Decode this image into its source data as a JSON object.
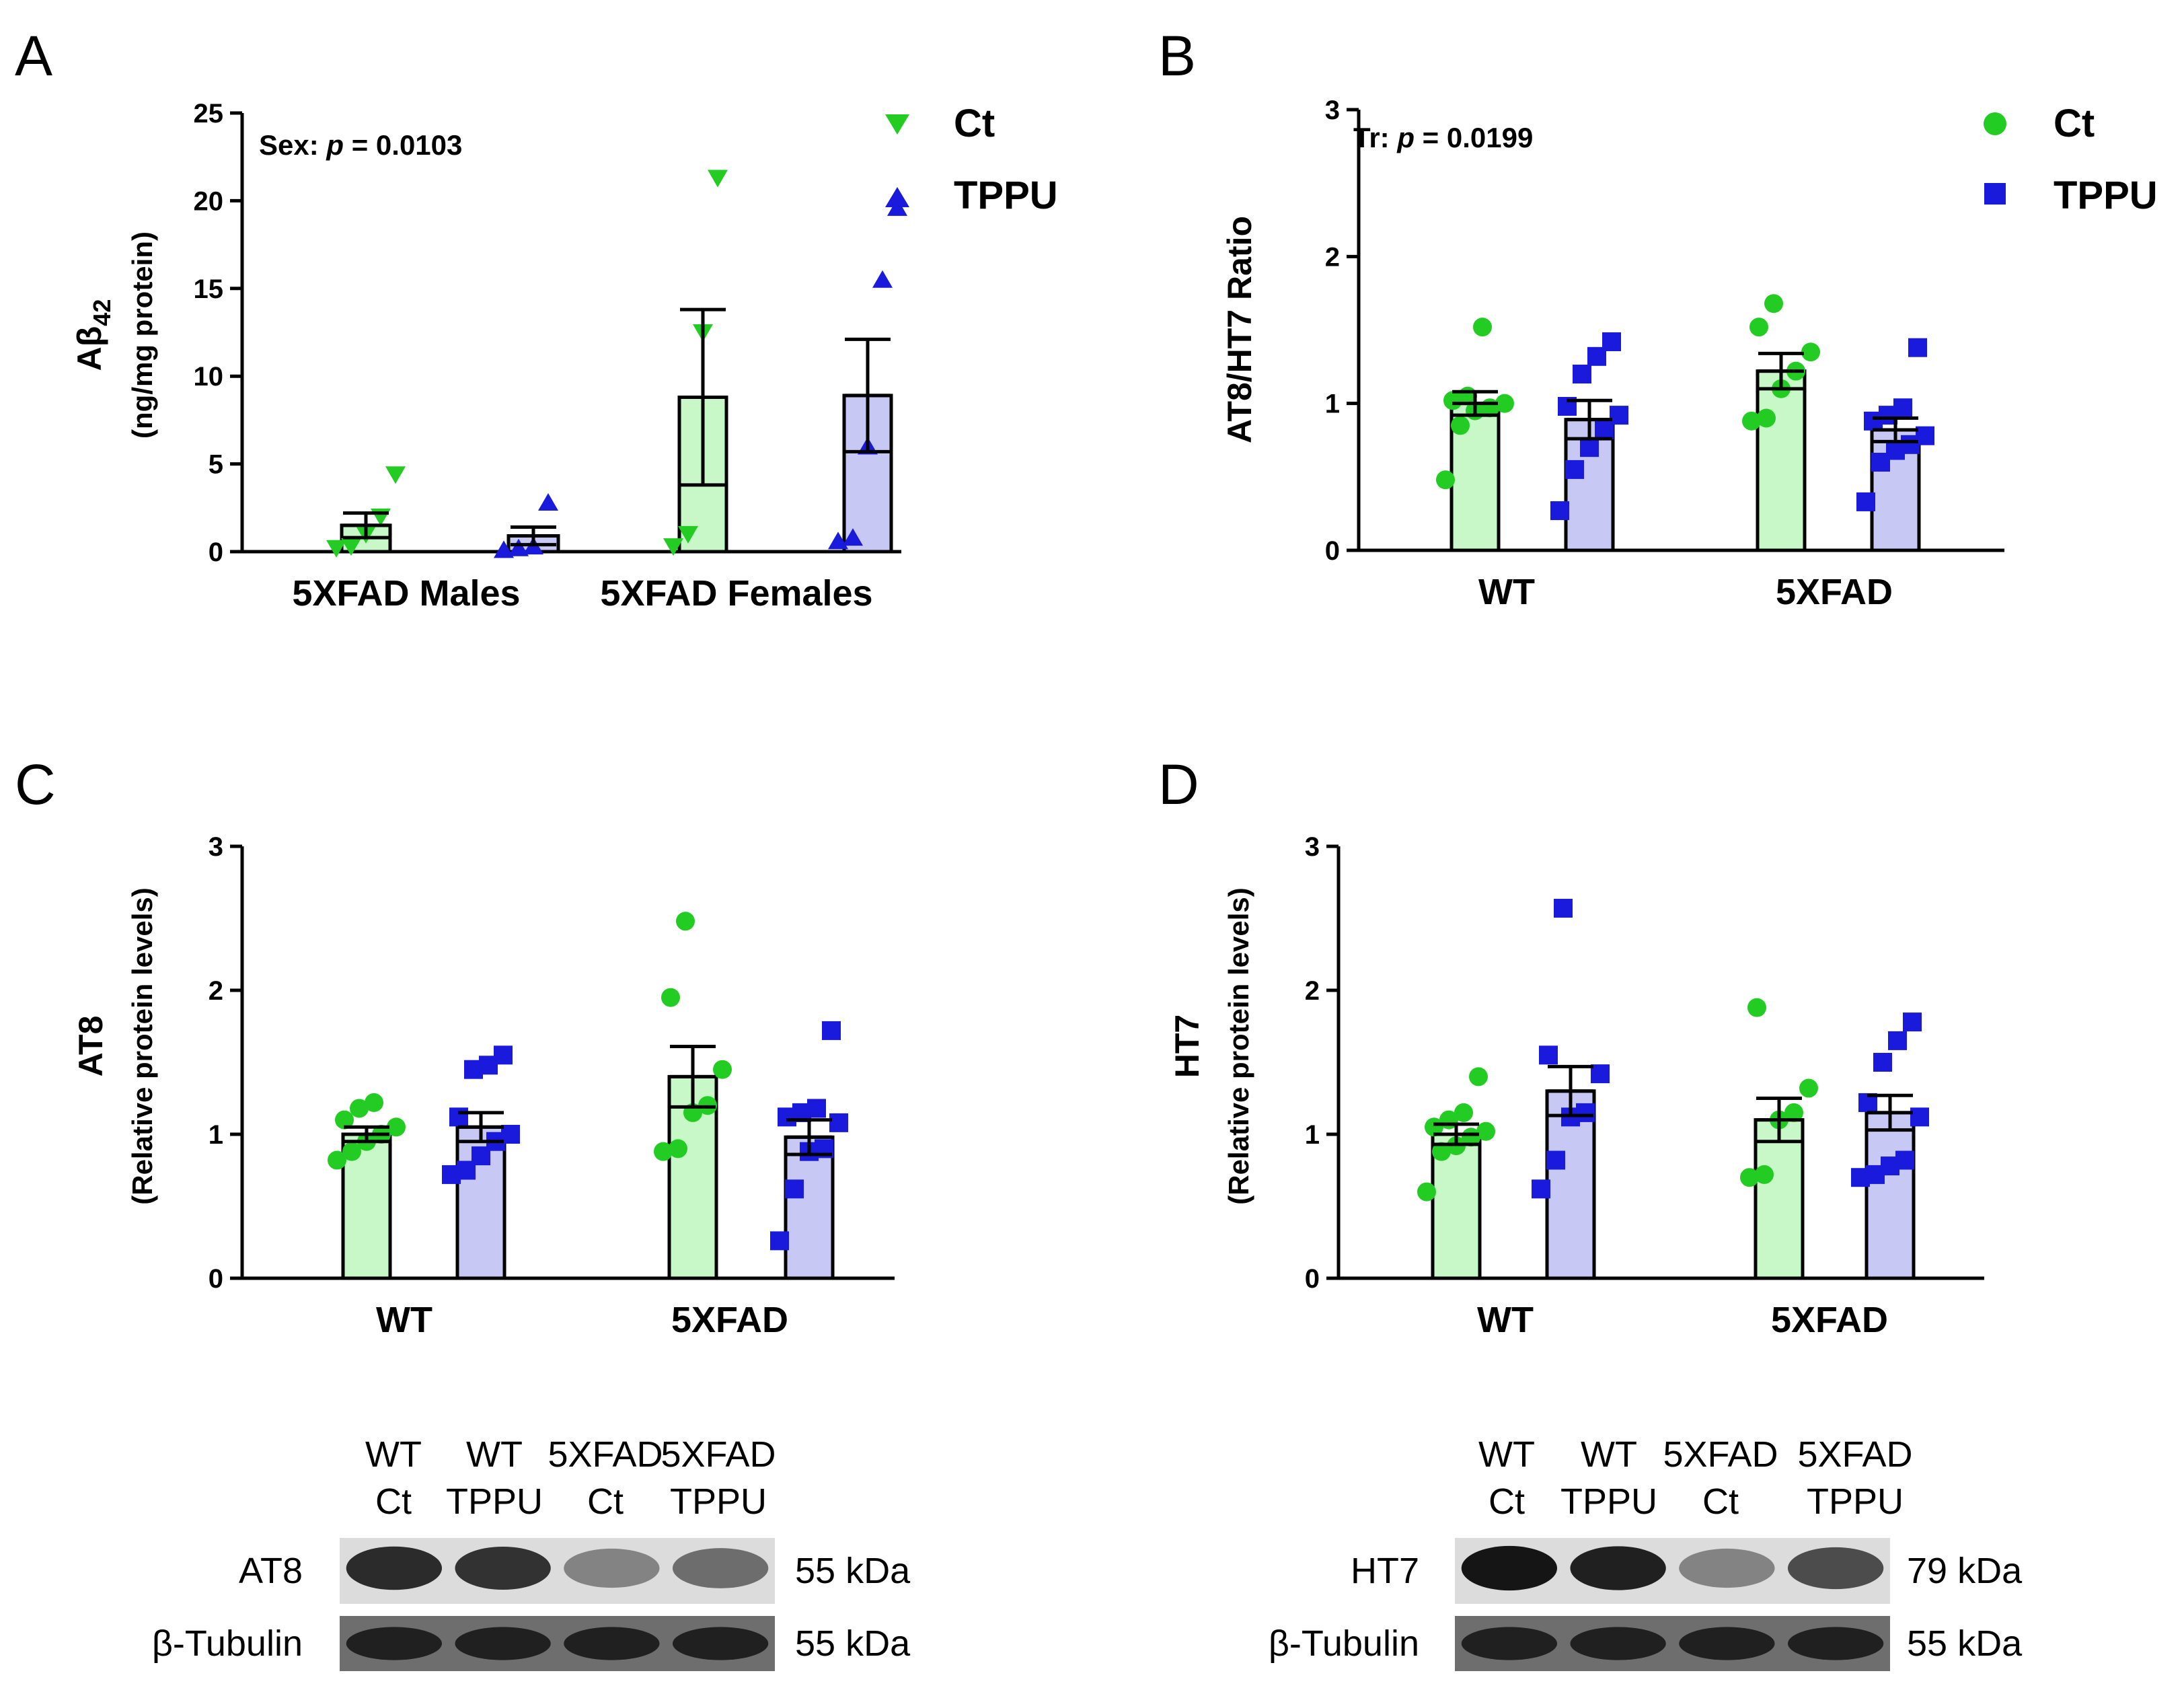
{
  "colors": {
    "ct_marker": "#22cc22",
    "tppu_marker": "#1a1adc",
    "ct_fill": "#c8f7c8",
    "tppu_fill": "#c8c8f5",
    "axis": "#000000"
  },
  "legend": [
    {
      "label": "Ct"
    },
    {
      "label": "TPPU"
    }
  ],
  "chart_data": [
    {
      "panel": "A",
      "type": "bar",
      "ylabel": "Aβ42",
      "ylabel_main": "Aβ",
      "ylabel_sub": "42",
      "ylabel2": "(ng/mg protein)",
      "ylim": [
        0,
        25
      ],
      "yticks": [
        0,
        5,
        10,
        15,
        20,
        25
      ],
      "ytick_labels": [
        "0",
        "5",
        "10",
        "15",
        "20",
        "25"
      ],
      "categories": [
        "5XFAD Males",
        "5XFAD Females"
      ],
      "annotation_prefix": "Sex: ",
      "annotation_p": "p",
      "annotation_suffix": " = 0.0103",
      "marker_ct": "triangle-down",
      "marker_tppu": "triangle-up",
      "series": [
        {
          "name": "Ct",
          "means": [
            1.5,
            8.8
          ],
          "sem": [
            0.7,
            5.0
          ],
          "points": [
            [
              0.2,
              0.3,
              1.0,
              2.0,
              4.4
            ],
            [
              0.3,
              1.0,
              12.5,
              21.3
            ]
          ]
        },
        {
          "name": "TPPU",
          "means": [
            0.9,
            8.9
          ],
          "sem": [
            0.5,
            3.2
          ],
          "points": [
            [
              0.1,
              0.2,
              0.3,
              2.8
            ],
            [
              0.6,
              0.8,
              6.0,
              15.5,
              19.6
            ]
          ]
        }
      ]
    },
    {
      "panel": "B",
      "type": "bar",
      "ylabel": "AT8/HT7 Ratio",
      "ylim": [
        0,
        3
      ],
      "yticks": [
        0,
        1,
        2,
        3
      ],
      "ytick_labels": [
        "0",
        "1",
        "2",
        "3"
      ],
      "categories": [
        "WT",
        "5XFAD"
      ],
      "annotation_prefix": "Tr: ",
      "annotation_p": "p",
      "annotation_suffix": " = 0.0199",
      "marker_ct": "circle",
      "marker_tppu": "square",
      "series": [
        {
          "name": "Ct",
          "means": [
            1.0,
            1.22
          ],
          "sem": [
            0.08,
            0.12
          ],
          "points": [
            [
              0.48,
              0.85,
              0.95,
              0.97,
              1.0,
              1.02,
              1.05,
              1.52
            ],
            [
              0.88,
              0.9,
              1.1,
              1.22,
              1.35,
              1.52,
              1.68
            ]
          ]
        },
        {
          "name": "TPPU",
          "means": [
            0.89,
            0.82
          ],
          "sem": [
            0.13,
            0.08
          ],
          "points": [
            [
              0.27,
              0.55,
              0.7,
              0.82,
              0.92,
              0.98,
              1.2,
              1.32,
              1.42
            ],
            [
              0.33,
              0.6,
              0.68,
              0.72,
              0.78,
              0.88,
              0.92,
              0.97,
              1.38
            ]
          ]
        }
      ]
    },
    {
      "panel": "C",
      "type": "bar",
      "ylabel": "AT8",
      "ylabel2": "(Relative protein levels)",
      "ylim": [
        0,
        3
      ],
      "yticks": [
        0,
        1,
        2,
        3
      ],
      "ytick_labels": [
        "0",
        "1",
        "2",
        "3"
      ],
      "categories": [
        "WT",
        "5XFAD"
      ],
      "marker_ct": "circle",
      "marker_tppu": "square",
      "series": [
        {
          "name": "Ct",
          "means": [
            1.0,
            1.4
          ],
          "sem": [
            0.05,
            0.21
          ],
          "points": [
            [
              0.82,
              0.88,
              0.95,
              1.0,
              1.05,
              1.1,
              1.18,
              1.22
            ],
            [
              0.88,
              0.9,
              1.15,
              1.2,
              1.45,
              1.95,
              2.48
            ]
          ]
        },
        {
          "name": "TPPU",
          "means": [
            1.05,
            0.98
          ],
          "sem": [
            0.1,
            0.12
          ],
          "points": [
            [
              0.72,
              0.75,
              0.85,
              0.95,
              1.0,
              1.12,
              1.45,
              1.48,
              1.55
            ],
            [
              0.26,
              0.62,
              0.88,
              0.9,
              1.08,
              1.12,
              1.15,
              1.18,
              1.72
            ]
          ]
        }
      ]
    },
    {
      "panel": "D",
      "type": "bar",
      "ylabel": "HT7",
      "ylabel2": "(Relative protein levels)",
      "ylim": [
        0,
        3
      ],
      "yticks": [
        0,
        1,
        2,
        3
      ],
      "ytick_labels": [
        "0",
        "1",
        "2",
        "3"
      ],
      "categories": [
        "WT",
        "5XFAD"
      ],
      "marker_ct": "circle",
      "marker_tppu": "square",
      "series": [
        {
          "name": "Ct",
          "means": [
            1.0,
            1.1
          ],
          "sem": [
            0.07,
            0.15
          ],
          "points": [
            [
              0.6,
              0.88,
              0.92,
              0.98,
              1.02,
              1.05,
              1.1,
              1.15,
              1.4
            ],
            [
              0.7,
              0.72,
              1.1,
              1.15,
              1.32,
              1.88
            ]
          ]
        },
        {
          "name": "TPPU",
          "means": [
            1.3,
            1.15
          ],
          "sem": [
            0.17,
            0.12
          ],
          "points": [
            [
              0.62,
              0.82,
              1.12,
              1.15,
              1.42,
              1.55,
              2.57
            ],
            [
              0.7,
              0.72,
              0.78,
              0.82,
              1.12,
              1.22,
              1.5,
              1.65,
              1.78
            ]
          ]
        }
      ]
    }
  ],
  "blots": [
    {
      "panel": "C",
      "lanes": [
        {
          "line1": "WT",
          "line2": "Ct"
        },
        {
          "line1": "WT",
          "line2": "TPPU"
        },
        {
          "line1": "5XFAD",
          "line2": "Ct"
        },
        {
          "line1": "5XFAD",
          "line2": "TPPU"
        }
      ],
      "rows": [
        {
          "label": "AT8",
          "size": "55 kDa",
          "intensity": [
            0.85,
            0.82,
            0.45,
            0.55
          ]
        },
        {
          "label": "β-Tubulin",
          "size": "55 kDa",
          "intensity": [
            0.9,
            0.9,
            0.9,
            0.9
          ]
        }
      ]
    },
    {
      "panel": "D",
      "lanes": [
        {
          "line1": "WT",
          "line2": "Ct"
        },
        {
          "line1": "WT",
          "line2": "TPPU"
        },
        {
          "line1": "5XFAD",
          "line2": "Ct"
        },
        {
          "line1": "5XFAD",
          "line2": "TPPU"
        }
      ],
      "rows": [
        {
          "label": "HT7",
          "size": "79 kDa",
          "intensity": [
            0.95,
            0.9,
            0.45,
            0.7
          ]
        },
        {
          "label": "β-Tubulin",
          "size": "55 kDa",
          "intensity": [
            0.9,
            0.9,
            0.9,
            0.9
          ]
        }
      ]
    }
  ]
}
